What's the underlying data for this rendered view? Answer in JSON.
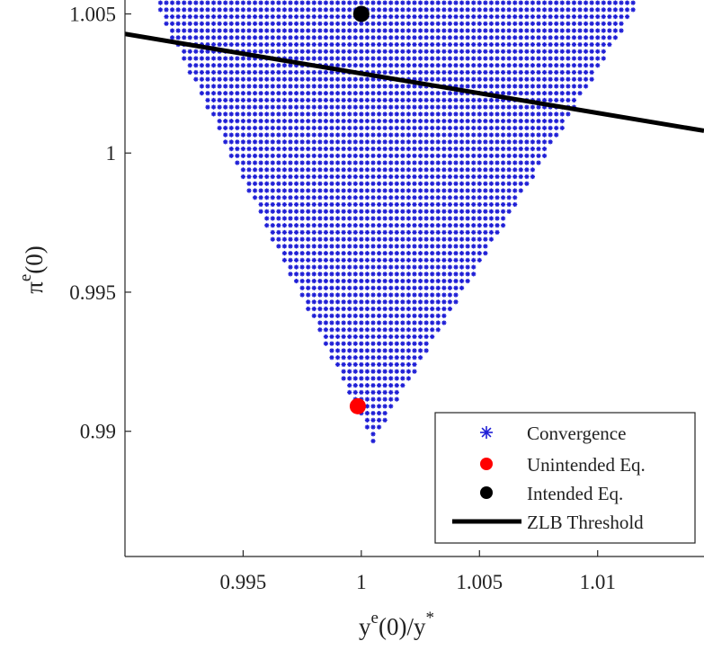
{
  "chart_data": {
    "type": "scatter",
    "xlim": [
      0.99,
      1.0145
    ],
    "ylim": [
      0.9855,
      1.0055
    ],
    "x_ticks": [
      {
        "value": 0.995,
        "label": "0.995"
      },
      {
        "value": 1.0,
        "label": "1"
      },
      {
        "value": 1.005,
        "label": "1.005"
      },
      {
        "value": 1.01,
        "label": "1.01"
      }
    ],
    "y_ticks": [
      {
        "value": 0.99,
        "label": "0.99"
      },
      {
        "value": 0.995,
        "label": "0.995"
      },
      {
        "value": 1.0,
        "label": "1"
      },
      {
        "value": 1.005,
        "label": "1.005"
      }
    ],
    "xlabel": {
      "base": "y",
      "sup": "e",
      "mid": "(0)/y",
      "sup2": "*"
    },
    "ylabel": {
      "base": "π",
      "sup": "e",
      "mid": "(0)"
    },
    "series": [
      {
        "name": "Convergence",
        "marker": "asterisk",
        "color": "#1f1fd6",
        "region": {
          "apex": [
            1.0005,
            0.98965
          ],
          "left_edge_top": [
            0.9912,
            1.0055
          ],
          "right_edge_top": [
            1.0118,
            1.0055
          ],
          "x_step": 0.00025,
          "y_step": 0.00025
        }
      },
      {
        "name": "Unintended Eq.",
        "marker": "circle",
        "color": "#ff0000",
        "points": [
          [
            0.99985,
            0.9909
          ]
        ]
      },
      {
        "name": "Intended Eq.",
        "marker": "circle",
        "color": "#000000",
        "points": [
          [
            1.0,
            1.005
          ]
        ]
      },
      {
        "name": "ZLB Threshold",
        "marker": "line",
        "color": "#000000",
        "line": [
          [
            0.99,
            1.00428
          ],
          [
            1.0145,
            1.0008
          ]
        ]
      }
    ],
    "legend_position": "bottom-right",
    "grid": false
  }
}
